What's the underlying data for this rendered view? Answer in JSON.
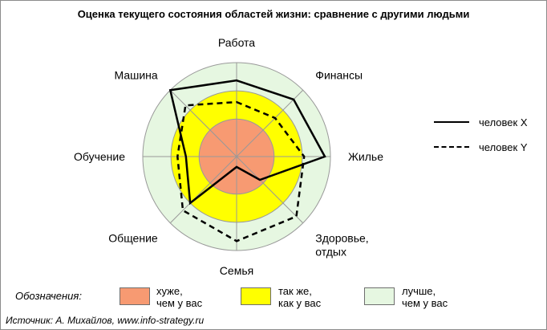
{
  "chart_data": {
    "type": "radar",
    "title": "Оценка текущего состояния областей жизни: сравнение с другими людьми",
    "axes": [
      "Работа",
      "Финансы",
      "Жилье",
      "Здоровье,\nотдых",
      "Семья",
      "Общение",
      "Обучение",
      "Машина"
    ],
    "scale_max": 1.0,
    "zones": [
      {
        "name": "хуже,\nчем у вас",
        "from": 0,
        "to": 0.4,
        "color": "#f79a72"
      },
      {
        "name": "так же,\nкак у вас",
        "from": 0.4,
        "to": 0.7,
        "color": "#ffff00"
      },
      {
        "name": "лучше,\nчем у вас",
        "from": 0.7,
        "to": 1.0,
        "color": "#e6f7e1"
      }
    ],
    "series": [
      {
        "name": "человек X",
        "style": "solid",
        "values": [
          0.81,
          0.86,
          0.94,
          0.35,
          0.11,
          0.7,
          0.54,
          1.0
        ]
      },
      {
        "name": "человек Y",
        "style": "dashed",
        "values": [
          0.58,
          0.58,
          0.72,
          0.9,
          0.9,
          0.81,
          0.63,
          0.77
        ]
      }
    ]
  },
  "legend": {
    "title": "Обозначения:",
    "series_solid": "человек X",
    "series_dashed": "человек Y",
    "worse_line1": "хуже,",
    "worse_line2": "чем у вас",
    "same_line1": "так же,",
    "same_line2": "как у вас",
    "better_line1": "лучше,",
    "better_line2": "чем у вас"
  },
  "source": "Источник: А. Михайлов, www.info-strategy.ru",
  "colors": {
    "worse": "#f79a72",
    "same": "#ffff00",
    "better": "#e6f7e1",
    "grid": "#999999",
    "series": "#000000"
  }
}
